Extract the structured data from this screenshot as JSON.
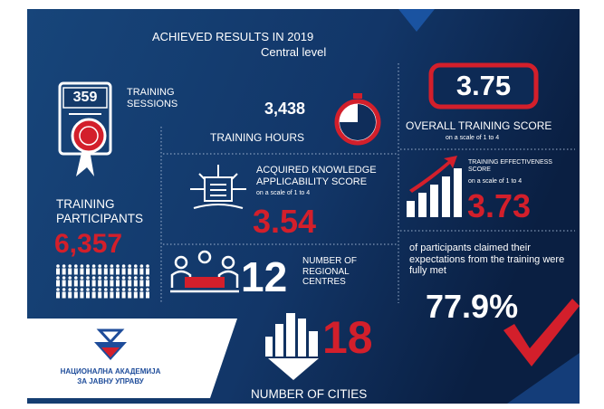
{
  "header": {
    "title": "ACHIEVED RESULTS IN 2019",
    "subtitle": "Central level"
  },
  "sessions": {
    "number": "359",
    "label": "TRAINING SESSIONS"
  },
  "hours": {
    "number": "3,438",
    "label": "TRAINING HOURS"
  },
  "overall": {
    "number": "3.75",
    "label": "OVERALL TRAINING SCORE",
    "scale": "on a scale of 1 to 4"
  },
  "knowledge": {
    "label": "ACQUIRED KNOWLEDGE APPLICABILITY SCORE",
    "scale": "on a scale of 1 to 4",
    "number": "3.54"
  },
  "participants": {
    "label": "TRAINING PARTICIPANTS",
    "number": "6,357"
  },
  "effectiveness": {
    "label": "TRAINING EFFECTIVENESS SCORE",
    "scale": "on a scale of 1 to 4",
    "number": "3.73"
  },
  "expectations": {
    "label": "of participants claimed their expectations from the training were fully met",
    "number": "77.9%"
  },
  "regional": {
    "number": "12",
    "label": "NUMBER OF REGIONAL CENTRES"
  },
  "cities": {
    "number": "18",
    "label": "NUMBER OF CITIES"
  },
  "logo": {
    "line1": "НАЦИОНАЛНА АКАДЕМИЈА",
    "line2": "ЗА ЈАВНУ УПРАВУ"
  }
}
